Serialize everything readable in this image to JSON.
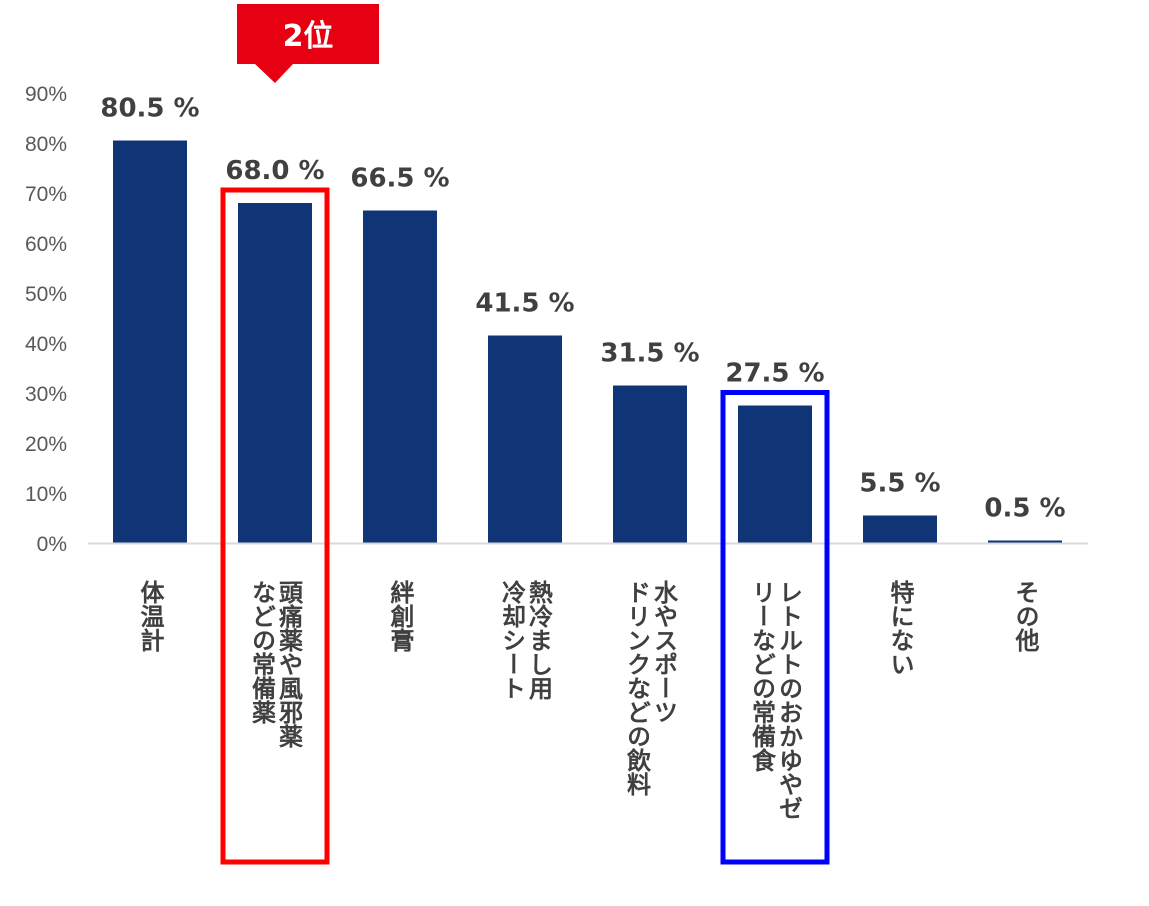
{
  "chart_data": {
    "type": "bar",
    "categories": [
      [
        "体温計"
      ],
      [
        "頭痛薬や風邪薬",
        "などの常備薬"
      ],
      [
        "絆創膏"
      ],
      [
        "熱冷まし用",
        "冷却シート"
      ],
      [
        "水やスポーツ",
        "ドリンクなどの飲料"
      ],
      [
        "レトルトのおかゆやゼ",
        "リーなどの常備食"
      ],
      [
        "特にない"
      ],
      [
        "その他"
      ]
    ],
    "values": [
      80.5,
      68.0,
      66.5,
      41.5,
      31.5,
      27.5,
      5.5,
      0.5
    ],
    "data_labels": [
      "80.5 %",
      "68.0 %",
      "66.5 %",
      "41.5 %",
      "31.5 %",
      "27.5 %",
      "5.5 %",
      "0.5 %"
    ],
    "y_ticks": [
      "0%",
      "10%",
      "20%",
      "30%",
      "40%",
      "50%",
      "60%",
      "70%",
      "80%",
      "90%"
    ],
    "ylim": [
      0,
      90
    ],
    "bar_color": "#0f3577",
    "grid": false,
    "highlights": [
      {
        "index": 1,
        "color": "#ff0000",
        "badge": "2位"
      },
      {
        "index": 5,
        "color": "#0000ff"
      }
    ]
  }
}
